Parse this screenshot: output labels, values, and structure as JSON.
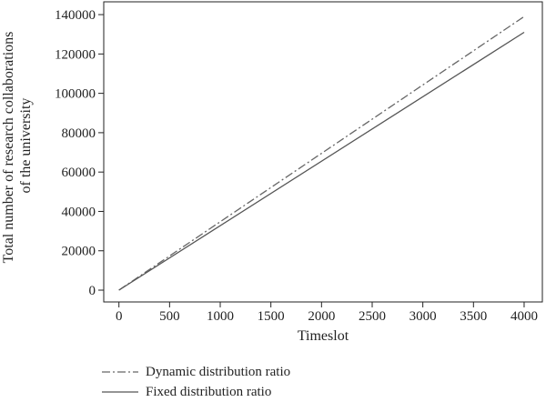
{
  "chart_data": {
    "type": "line",
    "xlabel": "Timeslot",
    "ylabel_lines": [
      "Total number of research collaborations",
      "of the university"
    ],
    "xlim": [
      -150,
      4180
    ],
    "ylim": [
      -6000,
      146500
    ],
    "xticks": [
      0,
      500,
      1000,
      1500,
      2000,
      2500,
      3000,
      3500,
      4000
    ],
    "yticks": [
      0,
      20000,
      40000,
      60000,
      80000,
      100000,
      120000,
      140000
    ],
    "grid": false,
    "legend_position": "bottom-left",
    "series": [
      {
        "name": "Dynamic distribution ratio",
        "style": "dashdot",
        "color": "#666666",
        "x": [
          0,
          4000
        ],
        "y": [
          0,
          139000
        ]
      },
      {
        "name": "Fixed distribution ratio",
        "style": "solid",
        "color": "#555555",
        "x": [
          0,
          4000
        ],
        "y": [
          0,
          131000
        ]
      }
    ]
  }
}
